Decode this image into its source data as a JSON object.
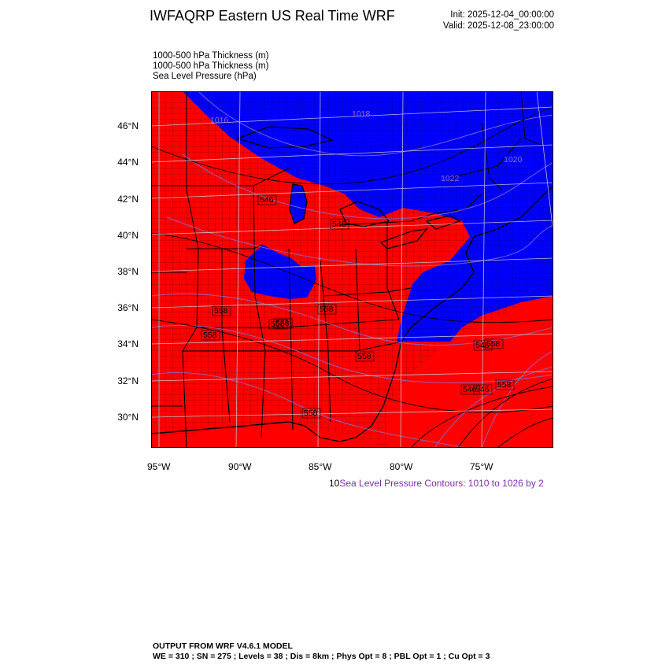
{
  "header": {
    "title": "IWFAQRP Eastern US Real Time WRF",
    "init": "Init: 2025-12-04_00:00:00",
    "valid": "Valid: 2025-12-08_23:00:00"
  },
  "fields": [
    "1000-500 hPa Thickness   (m)",
    "1000-500 hPa Thickness   (m)",
    "Sea Level Pressure   (hPa)"
  ],
  "map": {
    "warm_color": "#ff0000",
    "cold_color": "#0000ff",
    "slp_contour_color": "#8a6fd0",
    "lat_labels": [
      "46°N",
      "44°N",
      "42°N",
      "40°N",
      "38°N",
      "36°N",
      "34°N",
      "32°N",
      "30°N"
    ],
    "lon_labels": [
      "95°W",
      "90°W",
      "85°W",
      "80°W",
      "75°W"
    ],
    "thickness_labels": [
      "546",
      "546",
      "558",
      "558",
      "558",
      "558",
      "546",
      "558",
      "558",
      "546",
      "558",
      "558",
      "546",
      "558"
    ],
    "slp_labels": [
      "1016",
      "1018",
      "1022",
      "1020"
    ]
  },
  "contour_info": {
    "prefix": "10",
    "slp": "Sea Level Pressure Contours: 1010 to 1026 by 2"
  },
  "footer": {
    "line1": "OUTPUT FROM WRF V4.6.1 MODEL",
    "line2": "WE = 310 ; SN = 275 ; Levels = 38 ; Dis = 8km ; Phys Opt = 8 ; PBL Opt = 1 ; Cu Opt = 3"
  }
}
